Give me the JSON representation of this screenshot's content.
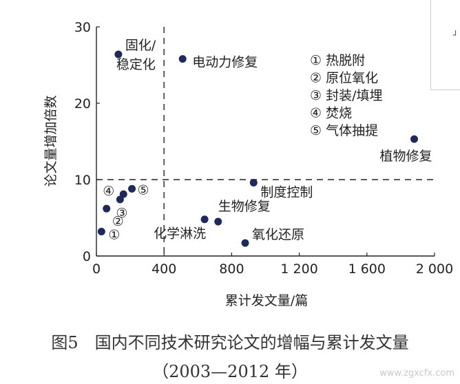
{
  "chart_data": {
    "type": "scatter",
    "xlabel": "累计发文量/篇",
    "ylabel": "论文量增加倍数",
    "xlim": [
      0,
      2000
    ],
    "ylim": [
      0,
      30
    ],
    "x_ticks": [
      0,
      400,
      800,
      1200,
      1600,
      2000
    ],
    "x_tick_labels": [
      "0",
      "400",
      "800",
      "1 200",
      "1 600",
      "2 000"
    ],
    "y_ticks": [
      0,
      10,
      20,
      30
    ],
    "y_tick_labels": [
      "0",
      "10",
      "20",
      "30"
    ],
    "reference_lines": {
      "x": 400,
      "y": 10,
      "style": "dashed"
    },
    "points": [
      {
        "label": "固化/稳定化",
        "x": 130,
        "y": 26.4
      },
      {
        "label": "电动力修复",
        "x": 510,
        "y": 25.8
      },
      {
        "label": "植物修复",
        "x": 1880,
        "y": 15.3
      },
      {
        "label": "制度控制",
        "x": 930,
        "y": 9.6
      },
      {
        "label": "生物修复",
        "x": 720,
        "y": 4.5
      },
      {
        "label": "化学淋洗",
        "x": 640,
        "y": 4.8
      },
      {
        "label": "氧化还原",
        "x": 880,
        "y": 1.7
      },
      {
        "label": "①",
        "x": 30,
        "y": 3.2
      },
      {
        "label": "②",
        "x": 60,
        "y": 6.2
      },
      {
        "label": "③",
        "x": 140,
        "y": 7.4
      },
      {
        "label": "④",
        "x": 160,
        "y": 8.1
      },
      {
        "label": "⑤",
        "x": 210,
        "y": 8.8
      }
    ],
    "legend": [
      "① 热脱附",
      "② 原位氧化",
      "③ 封装/填埋",
      "④ 焚烧",
      "⑤ 气体抽提"
    ],
    "point_color": "#1f2a5c"
  },
  "caption": {
    "line1": "图5　国内不同技术研究论文的增幅与累计发文量",
    "line2": "（2003—2012 年）"
  },
  "watermark": "www.zgxcfx.com"
}
